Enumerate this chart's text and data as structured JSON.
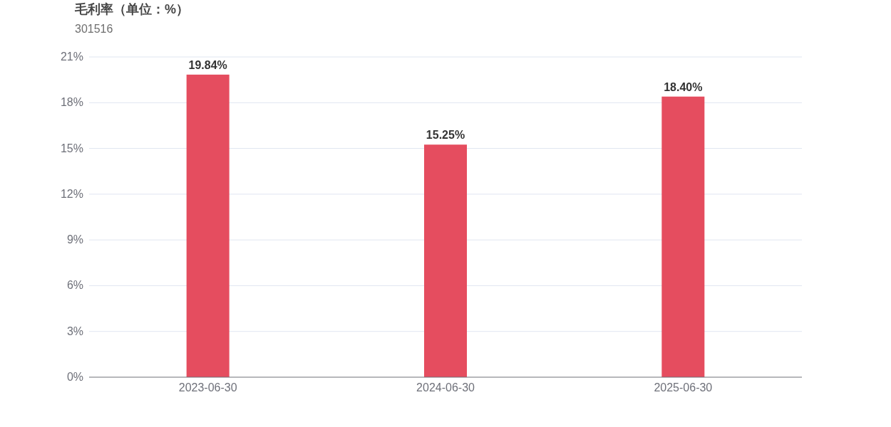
{
  "chart_data": {
    "type": "bar",
    "title": "毛利率（单位：%）",
    "subtitle": "301516",
    "categories": [
      "2023-06-30",
      "2024-06-30",
      "2025-06-30"
    ],
    "values": [
      19.84,
      15.25,
      18.4
    ],
    "color": "#e54d5f",
    "value_labels": [
      "19.84%",
      "15.25%",
      "18.40%"
    ],
    "ylim": [
      0,
      21
    ],
    "yticks": [
      {
        "value": 0,
        "label": "0%"
      },
      {
        "value": 3,
        "label": "3%"
      },
      {
        "value": 6,
        "label": "6%"
      },
      {
        "value": 9,
        "label": "9%"
      },
      {
        "value": 12,
        "label": "12%"
      },
      {
        "value": 15,
        "label": "15%"
      },
      {
        "value": 18,
        "label": "18%"
      },
      {
        "value": 21,
        "label": "21%"
      }
    ],
    "grid": "y"
  }
}
